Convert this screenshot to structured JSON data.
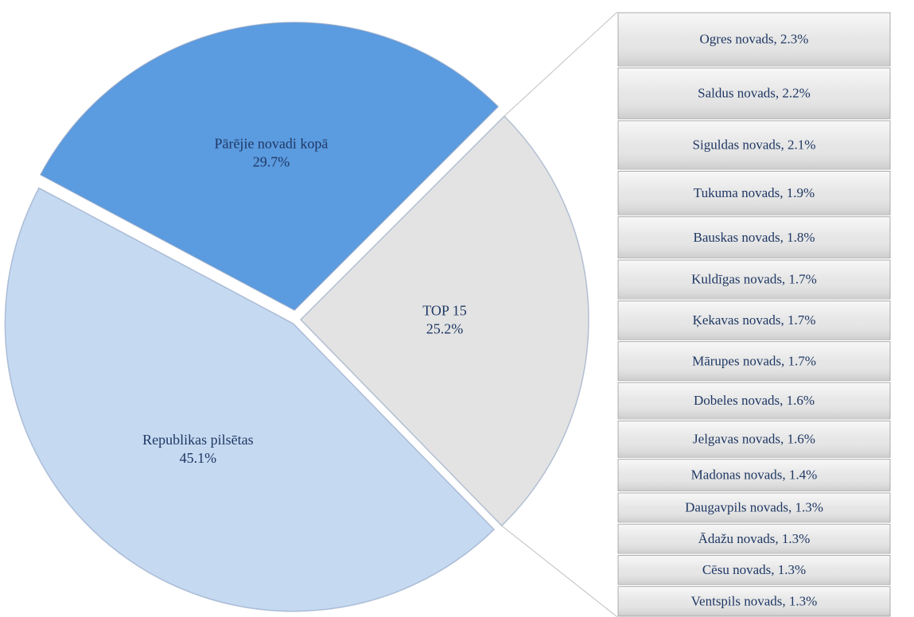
{
  "chart_data": [
    {
      "type": "pie",
      "categories": [
        "Pārējie novadi kopā",
        "TOP 15",
        "Republikas pilsētas"
      ],
      "values": [
        29.7,
        25.2,
        45.1
      ],
      "value_labels": [
        "29.7%",
        "25.2%",
        "45.1%"
      ],
      "colors": [
        "#5b9be0",
        "#e3e3e3",
        "#c5d9f1"
      ]
    },
    {
      "type": "bar",
      "values": [
        2.3,
        2.2,
        2.1,
        1.9,
        1.8,
        1.7,
        1.7,
        1.7,
        1.6,
        1.6,
        1.4,
        1.3,
        1.3,
        1.3,
        1.3
      ],
      "value_labels": [
        "Ogres novads, 2.3%",
        "Saldus novads, 2.2%",
        "Siguldas novads, 2.1%",
        "Tukuma novads, 1.9%",
        "Bauskas novads, 1.8%",
        "Kuldīgas novads, 1.7%",
        "Ķekavas novads, 1.7%",
        "Mārupes novads, 1.7%",
        "Dobeles novads, 1.6%",
        "Jelgavas novads, 1.6%",
        "Madonas novads, 1.4%",
        "Daugavpils novads, 1.3%",
        "Ādažu novads, 1.3%",
        "Cēsu novads, 1.3%",
        "Ventspils novads, 1.3%"
      ],
      "color": "#e6e6e6"
    }
  ]
}
